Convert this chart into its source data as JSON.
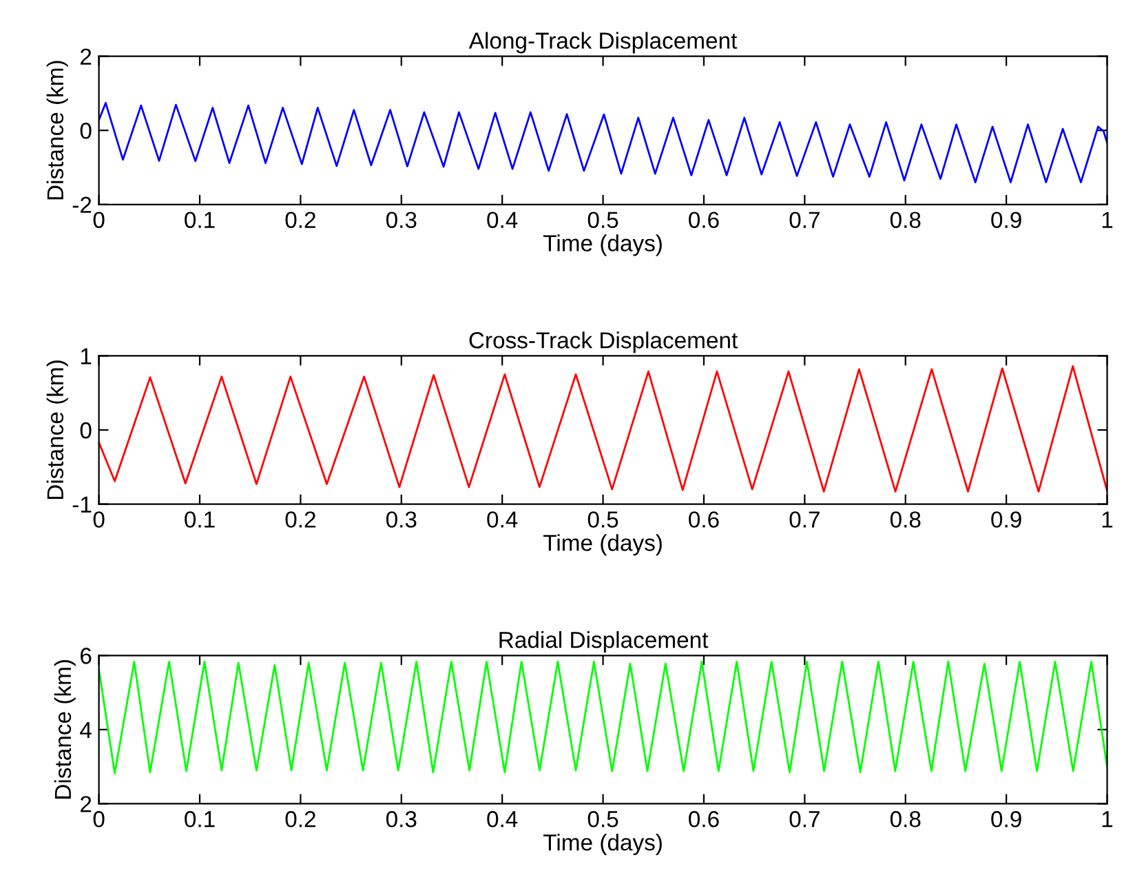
{
  "chart_data": [
    {
      "type": "line",
      "title": "Along-Track Displacement",
      "xlabel": "Time (days)",
      "ylabel": "Distance (km)",
      "xlim": [
        0,
        1
      ],
      "xticks": [
        0,
        0.1,
        0.2,
        0.3,
        0.4,
        0.5,
        0.6,
        0.7,
        0.8,
        0.9,
        1
      ],
      "ylim": [
        -2,
        2
      ],
      "yticks": [
        -2,
        0,
        2
      ],
      "grid": false,
      "series": [
        {
          "color": "#0000ff",
          "x": [
            0,
            0.0067,
            0.0238,
            0.0418,
            0.0597,
            0.0764,
            0.0957,
            0.1128,
            0.1294,
            0.1482,
            0.1653,
            0.1824,
            0.2013,
            0.217,
            0.2358,
            0.2529,
            0.27,
            0.2889,
            0.3059,
            0.3226,
            0.3419,
            0.3571,
            0.3765,
            0.3931,
            0.4102,
            0.4281,
            0.4461,
            0.4641,
            0.4811,
            0.5009,
            0.518,
            0.535,
            0.5517,
            0.5696,
            0.5876,
            0.6047,
            0.6226,
            0.6402,
            0.6572,
            0.6752,
            0.6923,
            0.7112,
            0.7282,
            0.7448,
            0.7642,
            0.7808,
            0.7988,
            0.8158,
            0.8347,
            0.8504,
            0.8693,
            0.8863,
            0.9043,
            0.9214,
            0.9394,
            0.956,
            0.974,
            0.991,
            0.9964,
            1.0
          ],
          "values": [
            0.28,
            0.74,
            -0.79,
            0.67,
            -0.82,
            0.69,
            -0.83,
            0.61,
            -0.88,
            0.67,
            -0.88,
            0.61,
            -0.91,
            0.61,
            -0.96,
            0.55,
            -0.94,
            0.55,
            -0.97,
            0.49,
            -0.98,
            0.49,
            -1.04,
            0.47,
            -1.04,
            0.49,
            -1.09,
            0.44,
            -1.09,
            0.43,
            -1.17,
            0.34,
            -1.17,
            0.34,
            -1.21,
            0.28,
            -1.21,
            0.34,
            -1.19,
            0.22,
            -1.23,
            0.22,
            -1.25,
            0.16,
            -1.25,
            0.22,
            -1.35,
            0.16,
            -1.31,
            0.16,
            -1.4,
            0.1,
            -1.4,
            0.16,
            -1.4,
            0.04,
            -1.4,
            0.1,
            -0.02,
            -0.33
          ]
        }
      ]
    },
    {
      "type": "line",
      "title": "Cross-Track Displacement",
      "xlabel": "Time (days)",
      "ylabel": "Distance (km)",
      "xlim": [
        0,
        1
      ],
      "xticks": [
        0,
        0.1,
        0.2,
        0.3,
        0.4,
        0.5,
        0.6,
        0.7,
        0.8,
        0.9,
        1
      ],
      "ylim": [
        -1,
        1
      ],
      "yticks": [
        -1,
        0,
        1
      ],
      "grid": false,
      "series": [
        {
          "color": "#ff0000",
          "x": [
            0,
            0.0157,
            0.0508,
            0.0858,
            0.1217,
            0.1563,
            0.19,
            0.226,
            0.263,
            0.298,
            0.332,
            0.367,
            0.4025,
            0.437,
            0.473,
            0.509,
            0.545,
            0.579,
            0.613,
            0.648,
            0.684,
            0.719,
            0.754,
            0.79,
            0.826,
            0.862,
            0.896,
            0.932,
            0.966,
            1.0
          ],
          "values": [
            -0.17,
            -0.69,
            0.71,
            -0.72,
            0.72,
            -0.73,
            0.72,
            -0.73,
            0.72,
            -0.77,
            0.74,
            -0.77,
            0.75,
            -0.77,
            0.75,
            -0.8,
            0.79,
            -0.81,
            0.79,
            -0.8,
            0.79,
            -0.83,
            0.82,
            -0.83,
            0.82,
            -0.83,
            0.83,
            -0.83,
            0.86,
            -0.82
          ]
        }
      ]
    },
    {
      "type": "line",
      "title": "Radial Displacement",
      "xlabel": "Time (days)",
      "ylabel": "Distance (km)",
      "xlim": [
        0,
        1
      ],
      "xticks": [
        0,
        0.1,
        0.2,
        0.3,
        0.4,
        0.5,
        0.6,
        0.7,
        0.8,
        0.9,
        1
      ],
      "ylim": [
        2,
        6
      ],
      "yticks": [
        2,
        4,
        6
      ],
      "grid": false,
      "series": [
        {
          "color": "#00ff00",
          "x": [
            0,
            0.0157,
            0.035,
            0.0508,
            0.0696,
            0.0867,
            0.1047,
            0.1217,
            0.1384,
            0.1563,
            0.1743,
            0.1909,
            0.208,
            0.226,
            0.2439,
            0.2619,
            0.2799,
            0.2969,
            0.3149,
            0.3315,
            0.3495,
            0.3675,
            0.3845,
            0.4025,
            0.4191,
            0.4371,
            0.4551,
            0.473,
            0.491,
            0.509,
            0.527,
            0.544,
            0.562,
            0.58,
            0.598,
            0.6146,
            0.6326,
            0.6492,
            0.6671,
            0.6851,
            0.7022,
            0.7193,
            0.7372,
            0.7552,
            0.7732,
            0.7898,
            0.8078,
            0.8257,
            0.8424,
            0.8594,
            0.8783,
            0.8953,
            0.9133,
            0.9304,
            0.9484,
            0.9663,
            0.9843,
            1.0
          ],
          "values": [
            5.62,
            2.82,
            5.83,
            2.85,
            5.83,
            2.88,
            5.83,
            2.9,
            5.8,
            2.9,
            5.74,
            2.9,
            5.8,
            2.9,
            5.8,
            2.9,
            5.8,
            2.9,
            5.83,
            2.85,
            5.83,
            2.9,
            5.83,
            2.85,
            5.83,
            2.9,
            5.83,
            2.9,
            5.83,
            2.88,
            5.78,
            2.88,
            5.78,
            2.88,
            5.83,
            2.88,
            5.83,
            2.88,
            5.83,
            2.85,
            5.83,
            2.88,
            5.83,
            2.85,
            5.83,
            2.88,
            5.83,
            2.88,
            5.83,
            2.88,
            5.78,
            2.88,
            5.83,
            2.88,
            5.83,
            2.88,
            5.83,
            3.0
          ]
        }
      ]
    }
  ]
}
